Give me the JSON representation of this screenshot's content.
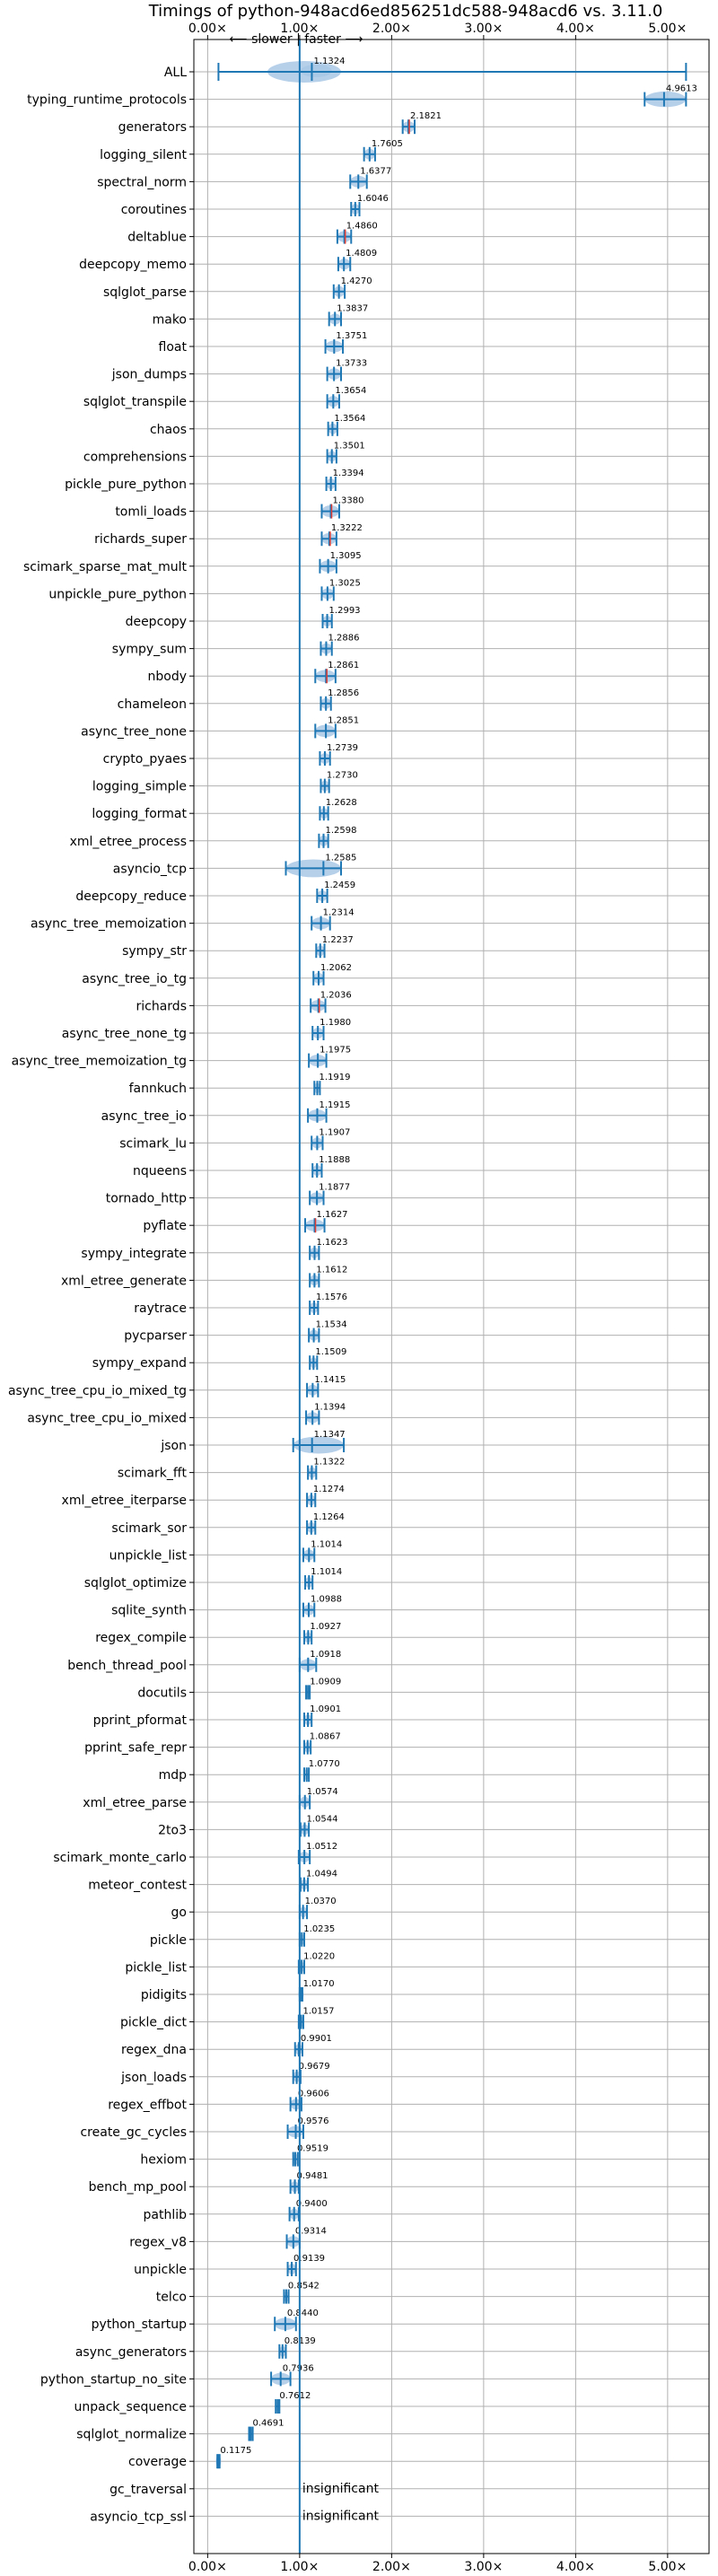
{
  "chart_data": {
    "type": "violin",
    "title": "Timings of python-948acd6ed856251dc588-948acd6 vs. 3.11.0",
    "direction_label": "⟵ slower | faster ⟶",
    "xlim": [
      -0.15,
      5.45
    ],
    "x_ticks": [
      0,
      1,
      2,
      3,
      4,
      5
    ],
    "x_tick_labels": [
      "0.00×",
      "1.00×",
      "2.00×",
      "3.00×",
      "4.00×",
      "5.00×"
    ],
    "grid": true,
    "reference_line": 1.0,
    "colors": {
      "body": "#1f77b4",
      "violin_fill": "#a9c8e6",
      "median_red": "#e03c31",
      "grid": "#b0b0b0"
    },
    "rows": [
      {
        "name": "ALL",
        "value": 1.1324,
        "label": "1.1324",
        "lo": 0.1175,
        "hi": 5.2,
        "spread": 0.2,
        "special": "all"
      },
      {
        "name": "typing_runtime_protocols",
        "value": 4.9613,
        "label": "4.9613",
        "lo": 4.75,
        "hi": 5.2,
        "spread": 0.22
      },
      {
        "name": "generators",
        "value": 2.1821,
        "label": "2.1821",
        "lo": 2.12,
        "hi": 2.25,
        "spread": 0.07,
        "red": true
      },
      {
        "name": "logging_silent",
        "value": 1.7605,
        "label": "1.7605",
        "lo": 1.7,
        "hi": 1.82,
        "spread": 0.06
      },
      {
        "name": "spectral_norm",
        "value": 1.6377,
        "label": "1.6377",
        "lo": 1.55,
        "hi": 1.73,
        "spread": 0.07
      },
      {
        "name": "coroutines",
        "value": 1.6046,
        "label": "1.6046",
        "lo": 1.56,
        "hi": 1.65,
        "spread": 0.04
      },
      {
        "name": "deltablue",
        "value": 1.486,
        "label": "1.4860",
        "lo": 1.41,
        "hi": 1.56,
        "spread": 0.07,
        "red": true
      },
      {
        "name": "deepcopy_memo",
        "value": 1.4809,
        "label": "1.4809",
        "lo": 1.42,
        "hi": 1.55,
        "spread": 0.06
      },
      {
        "name": "sqlglot_parse",
        "value": 1.427,
        "label": "1.4270",
        "lo": 1.37,
        "hi": 1.49,
        "spread": 0.06
      },
      {
        "name": "mako",
        "value": 1.3837,
        "label": "1.3837",
        "lo": 1.32,
        "hi": 1.45,
        "spread": 0.06
      },
      {
        "name": "float",
        "value": 1.3751,
        "label": "1.3751",
        "lo": 1.28,
        "hi": 1.47,
        "spread": 0.08
      },
      {
        "name": "json_dumps",
        "value": 1.3733,
        "label": "1.3733",
        "lo": 1.3,
        "hi": 1.45,
        "spread": 0.07
      },
      {
        "name": "sqlglot_transpile",
        "value": 1.3654,
        "label": "1.3654",
        "lo": 1.3,
        "hi": 1.43,
        "spread": 0.06
      },
      {
        "name": "chaos",
        "value": 1.3564,
        "label": "1.3564",
        "lo": 1.31,
        "hi": 1.41,
        "spread": 0.05
      },
      {
        "name": "comprehensions",
        "value": 1.3501,
        "label": "1.3501",
        "lo": 1.3,
        "hi": 1.4,
        "spread": 0.05
      },
      {
        "name": "pickle_pure_python",
        "value": 1.3394,
        "label": "1.3394",
        "lo": 1.29,
        "hi": 1.39,
        "spread": 0.05
      },
      {
        "name": "tomli_loads",
        "value": 1.338,
        "label": "1.3380",
        "lo": 1.24,
        "hi": 1.43,
        "spread": 0.08,
        "red": true
      },
      {
        "name": "richards_super",
        "value": 1.3222,
        "label": "1.3222",
        "lo": 1.24,
        "hi": 1.4,
        "spread": 0.07,
        "red": true
      },
      {
        "name": "scimark_sparse_mat_mult",
        "value": 1.3095,
        "label": "1.3095",
        "lo": 1.22,
        "hi": 1.4,
        "spread": 0.08
      },
      {
        "name": "unpickle_pure_python",
        "value": 1.3025,
        "label": "1.3025",
        "lo": 1.24,
        "hi": 1.37,
        "spread": 0.06
      },
      {
        "name": "deepcopy",
        "value": 1.2993,
        "label": "1.2993",
        "lo": 1.25,
        "hi": 1.35,
        "spread": 0.05
      },
      {
        "name": "sympy_sum",
        "value": 1.2886,
        "label": "1.2886",
        "lo": 1.23,
        "hi": 1.35,
        "spread": 0.06
      },
      {
        "name": "nbody",
        "value": 1.2861,
        "label": "1.2861",
        "lo": 1.17,
        "hi": 1.39,
        "spread": 0.09,
        "red": true
      },
      {
        "name": "chameleon",
        "value": 1.2856,
        "label": "1.2856",
        "lo": 1.23,
        "hi": 1.34,
        "spread": 0.05
      },
      {
        "name": "async_tree_none",
        "value": 1.2851,
        "label": "1.2851",
        "lo": 1.17,
        "hi": 1.39,
        "spread": 0.09
      },
      {
        "name": "crypto_pyaes",
        "value": 1.2739,
        "label": "1.2739",
        "lo": 1.22,
        "hi": 1.33,
        "spread": 0.05
      },
      {
        "name": "logging_simple",
        "value": 1.273,
        "label": "1.2730",
        "lo": 1.23,
        "hi": 1.32,
        "spread": 0.04
      },
      {
        "name": "logging_format",
        "value": 1.2628,
        "label": "1.2628",
        "lo": 1.22,
        "hi": 1.31,
        "spread": 0.04
      },
      {
        "name": "xml_etree_process",
        "value": 1.2598,
        "label": "1.2598",
        "lo": 1.21,
        "hi": 1.31,
        "spread": 0.05
      },
      {
        "name": "asyncio_tcp",
        "value": 1.2585,
        "label": "1.2585",
        "lo": 0.85,
        "hi": 1.45,
        "spread": 0.28
      },
      {
        "name": "deepcopy_reduce",
        "value": 1.2459,
        "label": "1.2459",
        "lo": 1.19,
        "hi": 1.3,
        "spread": 0.05
      },
      {
        "name": "async_tree_memoization",
        "value": 1.2314,
        "label": "1.2314",
        "lo": 1.13,
        "hi": 1.33,
        "spread": 0.08
      },
      {
        "name": "sympy_str",
        "value": 1.2237,
        "label": "1.2237",
        "lo": 1.18,
        "hi": 1.27,
        "spread": 0.04
      },
      {
        "name": "async_tree_io_tg",
        "value": 1.2062,
        "label": "1.2062",
        "lo": 1.15,
        "hi": 1.26,
        "spread": 0.05
      },
      {
        "name": "richards",
        "value": 1.2036,
        "label": "1.2036",
        "lo": 1.12,
        "hi": 1.28,
        "spread": 0.07,
        "red": true
      },
      {
        "name": "async_tree_none_tg",
        "value": 1.198,
        "label": "1.1980",
        "lo": 1.14,
        "hi": 1.26,
        "spread": 0.05
      },
      {
        "name": "async_tree_memoization_tg",
        "value": 1.1975,
        "label": "1.1975",
        "lo": 1.1,
        "hi": 1.29,
        "spread": 0.08
      },
      {
        "name": "fannkuch",
        "value": 1.1919,
        "label": "1.1919",
        "lo": 1.16,
        "hi": 1.22,
        "spread": 0.03
      },
      {
        "name": "async_tree_io",
        "value": 1.1915,
        "label": "1.1915",
        "lo": 1.09,
        "hi": 1.29,
        "spread": 0.08
      },
      {
        "name": "scimark_lu",
        "value": 1.1907,
        "label": "1.1907",
        "lo": 1.13,
        "hi": 1.25,
        "spread": 0.05
      },
      {
        "name": "nqueens",
        "value": 1.1888,
        "label": "1.1888",
        "lo": 1.14,
        "hi": 1.24,
        "spread": 0.04
      },
      {
        "name": "tornado_http",
        "value": 1.1877,
        "label": "1.1877",
        "lo": 1.11,
        "hi": 1.26,
        "spread": 0.07
      },
      {
        "name": "pyflate",
        "value": 1.1627,
        "label": "1.1627",
        "lo": 1.06,
        "hi": 1.27,
        "spread": 0.08,
        "red": true
      },
      {
        "name": "sympy_integrate",
        "value": 1.1623,
        "label": "1.1623",
        "lo": 1.11,
        "hi": 1.21,
        "spread": 0.04
      },
      {
        "name": "xml_etree_generate",
        "value": 1.1612,
        "label": "1.1612",
        "lo": 1.11,
        "hi": 1.21,
        "spread": 0.04
      },
      {
        "name": "raytrace",
        "value": 1.1576,
        "label": "1.1576",
        "lo": 1.11,
        "hi": 1.2,
        "spread": 0.04
      },
      {
        "name": "pycparser",
        "value": 1.1534,
        "label": "1.1534",
        "lo": 1.1,
        "hi": 1.21,
        "spread": 0.05
      },
      {
        "name": "sympy_expand",
        "value": 1.1509,
        "label": "1.1509",
        "lo": 1.11,
        "hi": 1.19,
        "spread": 0.04
      },
      {
        "name": "async_tree_cpu_io_mixed_tg",
        "value": 1.1415,
        "label": "1.1415",
        "lo": 1.08,
        "hi": 1.2,
        "spread": 0.05
      },
      {
        "name": "async_tree_cpu_io_mixed",
        "value": 1.1394,
        "label": "1.1394",
        "lo": 1.07,
        "hi": 1.21,
        "spread": 0.06
      },
      {
        "name": "json",
        "value": 1.1347,
        "label": "1.1347",
        "lo": 0.93,
        "hi": 1.48,
        "spread": 0.14
      },
      {
        "name": "scimark_fft",
        "value": 1.1322,
        "label": "1.1322",
        "lo": 1.09,
        "hi": 1.18,
        "spread": 0.04
      },
      {
        "name": "xml_etree_iterparse",
        "value": 1.1274,
        "label": "1.1274",
        "lo": 1.08,
        "hi": 1.17,
        "spread": 0.04
      },
      {
        "name": "scimark_sor",
        "value": 1.1264,
        "label": "1.1264",
        "lo": 1.08,
        "hi": 1.17,
        "spread": 0.04
      },
      {
        "name": "unpickle_list",
        "value": 1.1014,
        "label": "1.1014",
        "lo": 1.04,
        "hi": 1.16,
        "spread": 0.05
      },
      {
        "name": "sqlglot_optimize",
        "value": 1.1014,
        "label": "1.1014",
        "lo": 1.06,
        "hi": 1.14,
        "spread": 0.04
      },
      {
        "name": "sqlite_synth",
        "value": 1.0988,
        "label": "1.0988",
        "lo": 1.04,
        "hi": 1.16,
        "spread": 0.05
      },
      {
        "name": "regex_compile",
        "value": 1.0927,
        "label": "1.0927",
        "lo": 1.05,
        "hi": 1.13,
        "spread": 0.04
      },
      {
        "name": "bench_thread_pool",
        "value": 1.0918,
        "label": "1.0918",
        "lo": 1.0,
        "hi": 1.18,
        "spread": 0.07
      },
      {
        "name": "docutils",
        "value": 1.0909,
        "label": "1.0909",
        "lo": 1.07,
        "hi": 1.11,
        "spread": 0.02
      },
      {
        "name": "pprint_pformat",
        "value": 1.0901,
        "label": "1.0901",
        "lo": 1.05,
        "hi": 1.13,
        "spread": 0.04
      },
      {
        "name": "pprint_safe_repr",
        "value": 1.0867,
        "label": "1.0867",
        "lo": 1.05,
        "hi": 1.12,
        "spread": 0.03
      },
      {
        "name": "mdp",
        "value": 1.077,
        "label": "1.0770",
        "lo": 1.05,
        "hi": 1.1,
        "spread": 0.03
      },
      {
        "name": "xml_etree_parse",
        "value": 1.0574,
        "label": "1.0574",
        "lo": 1.0,
        "hi": 1.11,
        "spread": 0.05
      },
      {
        "name": "2to3",
        "value": 1.0544,
        "label": "1.0544",
        "lo": 1.01,
        "hi": 1.1,
        "spread": 0.04
      },
      {
        "name": "scimark_monte_carlo",
        "value": 1.0512,
        "label": "1.0512",
        "lo": 0.99,
        "hi": 1.11,
        "spread": 0.05
      },
      {
        "name": "meteor_contest",
        "value": 1.0494,
        "label": "1.0494",
        "lo": 1.01,
        "hi": 1.09,
        "spread": 0.04
      },
      {
        "name": "go",
        "value": 1.037,
        "label": "1.0370",
        "lo": 1.0,
        "hi": 1.08,
        "spread": 0.04
      },
      {
        "name": "pickle",
        "value": 1.0235,
        "label": "1.0235",
        "lo": 1.0,
        "hi": 1.05,
        "spread": 0.02
      },
      {
        "name": "pickle_list",
        "value": 1.022,
        "label": "1.0220",
        "lo": 0.99,
        "hi": 1.05,
        "spread": 0.03
      },
      {
        "name": "pidigits",
        "value": 1.017,
        "label": "1.0170",
        "lo": 1.0,
        "hi": 1.03,
        "spread": 0.02
      },
      {
        "name": "pickle_dict",
        "value": 1.0157,
        "label": "1.0157",
        "lo": 0.99,
        "hi": 1.04,
        "spread": 0.02
      },
      {
        "name": "regex_dna",
        "value": 0.9901,
        "label": "0.9901",
        "lo": 0.95,
        "hi": 1.03,
        "spread": 0.04
      },
      {
        "name": "json_loads",
        "value": 0.9679,
        "label": "0.9679",
        "lo": 0.93,
        "hi": 1.01,
        "spread": 0.04
      },
      {
        "name": "regex_effbot",
        "value": 0.9606,
        "label": "0.9606",
        "lo": 0.9,
        "hi": 1.02,
        "spread": 0.05
      },
      {
        "name": "create_gc_cycles",
        "value": 0.9576,
        "label": "0.9576",
        "lo": 0.87,
        "hi": 1.04,
        "spread": 0.07
      },
      {
        "name": "hexiom",
        "value": 0.9519,
        "label": "0.9519",
        "lo": 0.93,
        "hi": 0.98,
        "spread": 0.02
      },
      {
        "name": "bench_mp_pool",
        "value": 0.9481,
        "label": "0.9481",
        "lo": 0.9,
        "hi": 0.99,
        "spread": 0.04
      },
      {
        "name": "pathlib",
        "value": 0.94,
        "label": "0.9400",
        "lo": 0.89,
        "hi": 0.99,
        "spread": 0.04
      },
      {
        "name": "regex_v8",
        "value": 0.9314,
        "label": "0.9314",
        "lo": 0.86,
        "hi": 1.0,
        "spread": 0.06
      },
      {
        "name": "unpickle",
        "value": 0.9139,
        "label": "0.9139",
        "lo": 0.87,
        "hi": 0.96,
        "spread": 0.04
      },
      {
        "name": "telco",
        "value": 0.8542,
        "label": "0.8542",
        "lo": 0.83,
        "hi": 0.88,
        "spread": 0.02
      },
      {
        "name": "python_startup",
        "value": 0.844,
        "label": "0.8440",
        "lo": 0.73,
        "hi": 0.96,
        "spread": 0.09
      },
      {
        "name": "async_generators",
        "value": 0.8139,
        "label": "0.8139",
        "lo": 0.78,
        "hi": 0.85,
        "spread": 0.03
      },
      {
        "name": "python_startup_no_site",
        "value": 0.7936,
        "label": "0.7936",
        "lo": 0.69,
        "hi": 0.9,
        "spread": 0.08
      },
      {
        "name": "unpack_sequence",
        "value": 0.7612,
        "label": "0.7612",
        "lo": 0.74,
        "hi": 0.78,
        "spread": 0.02
      },
      {
        "name": "sqlglot_normalize",
        "value": 0.4691,
        "label": "0.4691",
        "lo": 0.45,
        "hi": 0.49,
        "spread": 0.02
      },
      {
        "name": "coverage",
        "value": 0.1175,
        "label": "0.1175",
        "lo": 0.105,
        "hi": 0.13,
        "spread": 0.01
      },
      {
        "name": "gc_traversal",
        "value": null,
        "label": "insignificant"
      },
      {
        "name": "asyncio_tcp_ssl",
        "value": null,
        "label": "insignificant"
      }
    ]
  }
}
